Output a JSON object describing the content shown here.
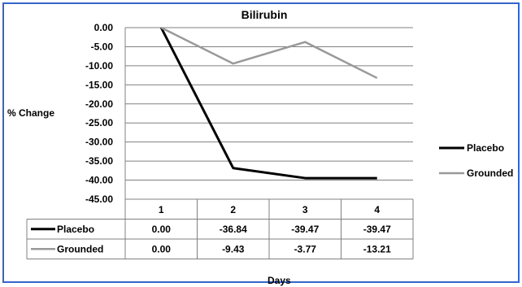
{
  "chart_data": {
    "type": "line",
    "title": "Bilirubin",
    "ylabel": "% Change",
    "xlabel": "Days",
    "ylim": [
      -45,
      0
    ],
    "y_ticks": [
      "0.00",
      "-5.00",
      "-10.00",
      "-15.00",
      "-20.00",
      "-25.00",
      "-30.00",
      "-35.00",
      "-40.00",
      "-45.00"
    ],
    "categories": [
      "1",
      "2",
      "3",
      "4"
    ],
    "grid": true,
    "legend_position": "right",
    "data_table": true,
    "series": [
      {
        "name": "Placebo",
        "color": "#000000",
        "values": [
          0.0,
          -36.84,
          -39.47,
          -39.47
        ],
        "labels": [
          "0.00",
          "-36.84",
          "-39.47",
          "-39.47"
        ]
      },
      {
        "name": "Grounded",
        "color": "#999999",
        "values": [
          0.0,
          -9.43,
          -3.77,
          -13.21
        ],
        "labels": [
          "0.00",
          "-9.43",
          "-3.77",
          "-13.21"
        ]
      }
    ]
  }
}
